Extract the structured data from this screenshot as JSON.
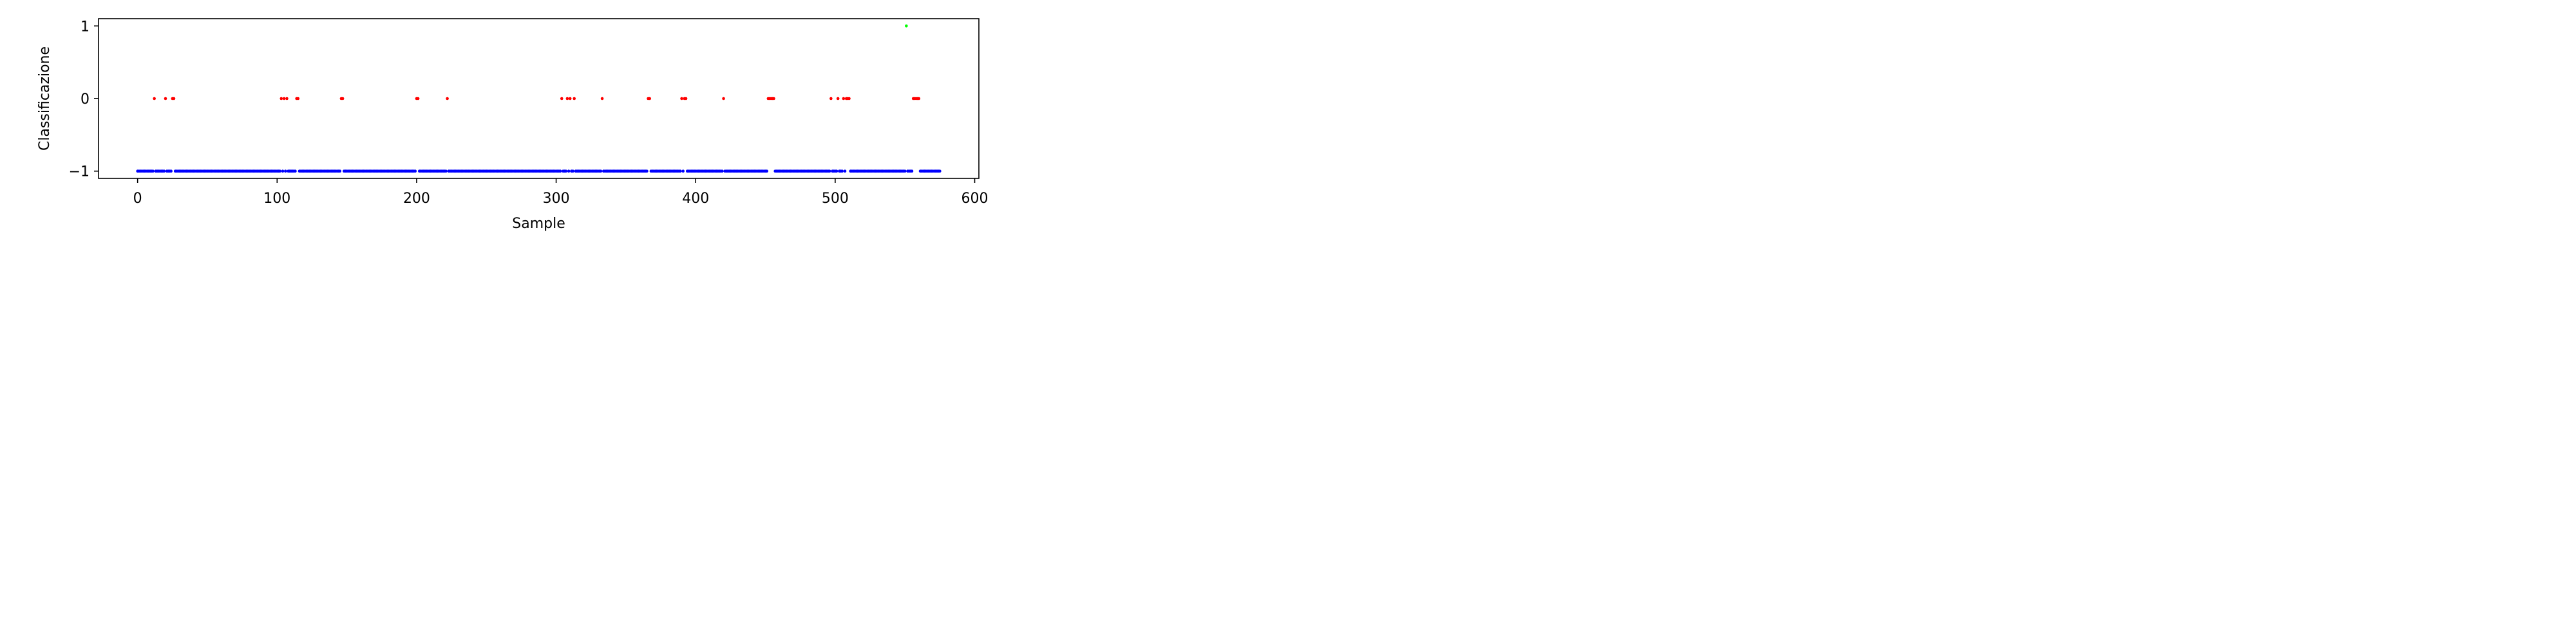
{
  "chart_data": {
    "type": "scatter",
    "title": "",
    "xlabel": "Sample",
    "ylabel": "Classificazione",
    "xlim": [
      -28,
      603
    ],
    "ylim": [
      -1.1,
      1.1
    ],
    "xticks": [
      0,
      100,
      200,
      300,
      400,
      500,
      600
    ],
    "xtick_labels": [
      "0",
      "100",
      "200",
      "300",
      "400",
      "500",
      "600"
    ],
    "yticks": [
      -1,
      0,
      1
    ],
    "ytick_labels": [
      "−1",
      "0",
      "1"
    ],
    "grid": false,
    "legend": "none",
    "colors": {
      "-1": "#0000ff",
      "0": "#ff0000",
      "1": "#00ff00"
    },
    "n_samples": 576,
    "x_range": [
      0,
      575
    ],
    "default_value": -1,
    "points_value_0": [
      12,
      20,
      25,
      26,
      103,
      105,
      107,
      114,
      115,
      146,
      147,
      200,
      201,
      222,
      304,
      308,
      310,
      313,
      333,
      366,
      367,
      390,
      392,
      393,
      420,
      452,
      453,
      454,
      455,
      456,
      497,
      502,
      506,
      508,
      509,
      510,
      556,
      557,
      558,
      559,
      560
    ],
    "points_value_1": [
      551
    ]
  }
}
